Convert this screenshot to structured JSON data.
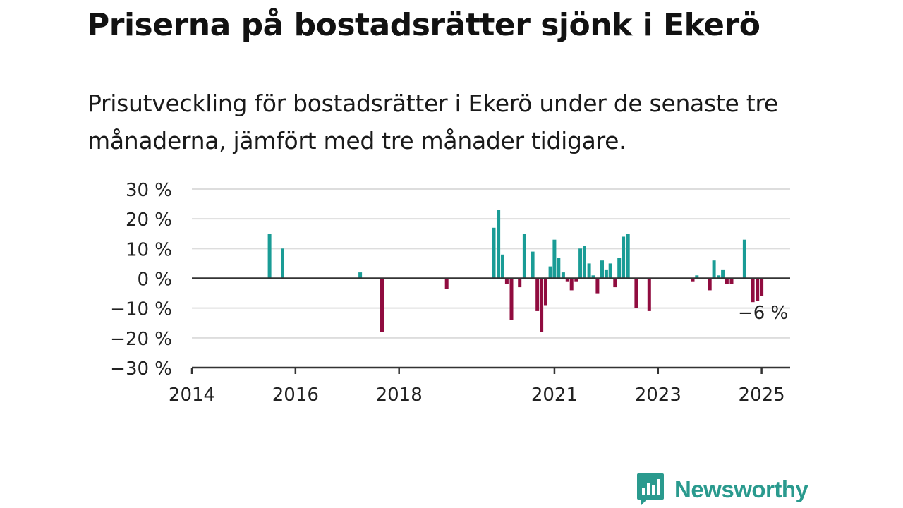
{
  "title": "Priserna på bostadsrätter sjönk i Ekerö",
  "subtitle": "Prisutveckling för bostadsrätter i Ekerö under de senaste tre månaderna, jämfört med tre månader tidigare.",
  "brand": {
    "name": "Newsworthy",
    "logo_icon": "bar-chart-speech-bubble-icon",
    "color": "#2a9a8e"
  },
  "colors": {
    "positive": "#1a9c96",
    "negative": "#900c3f",
    "grid": "#dddddd",
    "zero_line": "#333333",
    "axis": "#333333"
  },
  "chart_data": {
    "type": "bar",
    "title": "",
    "xlabel": "",
    "ylabel": "",
    "x_unit": "year (decimal, month resolution)",
    "ylim": [
      -30,
      30
    ],
    "xlim": [
      2014.0,
      2025.55
    ],
    "y_ticks": [
      30,
      20,
      10,
      0,
      -10,
      -20,
      -30
    ],
    "y_tick_labels": [
      "30 %",
      "20 %",
      "10 %",
      "0 %",
      "−10 %",
      "−20 %",
      "−30 %"
    ],
    "x_ticks": [
      2014,
      2016,
      2018,
      2021,
      2023,
      2025
    ],
    "x_tick_labels": [
      "2014",
      "2016",
      "2018",
      "2021",
      "2023",
      "2025"
    ],
    "grid": true,
    "legend": "none",
    "annotation": {
      "text": "−6 %",
      "x": 2025.0,
      "y": -6
    },
    "x": [
      2015.5,
      2015.75,
      2017.25,
      2017.67,
      2018.92,
      2019.83,
      2019.92,
      2020.0,
      2020.08,
      2020.17,
      2020.33,
      2020.42,
      2020.58,
      2020.67,
      2020.75,
      2020.83,
      2020.92,
      2021.0,
      2021.08,
      2021.17,
      2021.25,
      2021.33,
      2021.42,
      2021.5,
      2021.58,
      2021.67,
      2021.75,
      2021.83,
      2021.92,
      2022.0,
      2022.08,
      2022.17,
      2022.25,
      2022.33,
      2022.42,
      2022.58,
      2022.83,
      2023.67,
      2023.75,
      2024.0,
      2024.08,
      2024.17,
      2024.25,
      2024.33,
      2024.42,
      2024.67,
      2024.83,
      2024.92,
      2025.0
    ],
    "values": [
      15,
      10,
      2,
      -18,
      -3.5,
      17,
      23,
      8,
      -2,
      -14,
      -3,
      15,
      9,
      -11,
      -18,
      -9,
      4,
      13,
      7,
      2,
      -1,
      -4,
      -1,
      10,
      11,
      5,
      1,
      -5,
      6,
      3,
      5,
      -3,
      7,
      14,
      15,
      -10,
      -11,
      -1,
      1,
      -4,
      6,
      1,
      3,
      -2,
      -2,
      13,
      -8,
      -7.5,
      -6
    ]
  }
}
